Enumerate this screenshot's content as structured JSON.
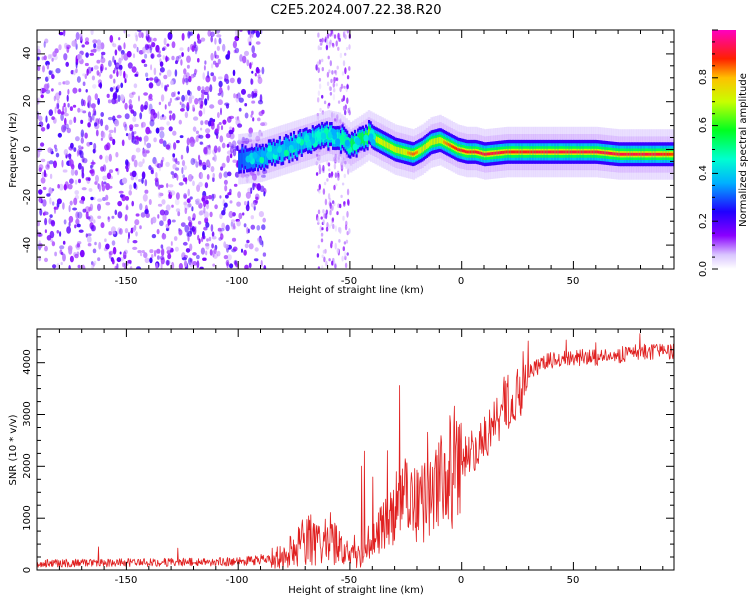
{
  "title": "C2E5.2024.007.22.38.R20",
  "colors": {
    "signal": "#ff2a2a",
    "snr_line": "#e02020",
    "noise": "#7a00ff"
  },
  "chart_data": [
    {
      "type": "heatmap",
      "xlabel": "Height of straight line (km)",
      "ylabel": "Frequency (Hz)",
      "xlim": [
        -190,
        95
      ],
      "ylim": [
        -50,
        50
      ],
      "x_ticks": [
        "-150",
        "-100",
        "-50",
        "0",
        "50"
      ],
      "y_ticks": [
        "-40",
        "-20",
        "0",
        "20",
        "40"
      ],
      "colorbar": {
        "label": "Normalized spectral amplitude",
        "range": [
          0,
          1
        ],
        "ticks": [
          "0.0",
          "0.2",
          "0.4",
          "0.6",
          "0.8"
        ],
        "colormap": "rainbow"
      },
      "ridge": {
        "x": [
          -100,
          -90,
          -80,
          -70,
          -60,
          -55,
          -50,
          -45,
          -42,
          -38,
          -34,
          -30,
          -26,
          -22,
          -18,
          -14,
          -10,
          -6,
          -2,
          2,
          6,
          10,
          20,
          30,
          40,
          50,
          60,
          70,
          80,
          90,
          95
        ],
        "y": [
          -4,
          -3,
          0,
          3,
          6,
          5,
          1,
          4,
          6,
          4,
          2,
          0,
          -1,
          -2,
          0,
          3,
          4,
          2,
          0,
          -1,
          -1,
          -2,
          -1,
          -1,
          -1,
          -1,
          -1,
          -2,
          -2,
          -2,
          -2
        ],
        "peak_amplitude": [
          0.3,
          0.35,
          0.4,
          0.45,
          0.45,
          0.45,
          0.55,
          0.6,
          0.65,
          0.7,
          0.75,
          0.8,
          0.8,
          0.85,
          0.8,
          0.75,
          0.8,
          0.85,
          0.9,
          0.9,
          0.9,
          0.95,
          0.9,
          0.9,
          0.95,
          0.95,
          0.95,
          0.95,
          0.95,
          0.9,
          0.85
        ]
      }
    },
    {
      "type": "line",
      "xlabel": "Height of straight line (km)",
      "ylabel": "SNR (10 * v/v)",
      "xlim": [
        -190,
        95
      ],
      "ylim": [
        0,
        4650
      ],
      "x_ticks": [
        "-150",
        "-100",
        "-50",
        "0",
        "50"
      ],
      "y_ticks": [
        "0",
        "1000",
        "2000",
        "3000",
        "4000"
      ],
      "series": [
        {
          "x": [
            -190,
            -150,
            -100,
            -80,
            -70,
            -60,
            -55,
            -50,
            -45,
            -40,
            -35,
            -30,
            -25,
            -20,
            -15,
            -10,
            -5,
            0,
            5,
            10,
            15,
            20,
            25,
            30,
            35,
            40,
            50,
            60,
            70,
            80,
            90,
            95
          ],
          "y": [
            130,
            140,
            160,
            250,
            550,
            700,
            450,
            250,
            250,
            500,
            900,
            1000,
            1400,
            1300,
            1300,
            1600,
            1900,
            2150,
            2300,
            2500,
            2900,
            3250,
            3550,
            3800,
            3950,
            4050,
            4100,
            4100,
            4150,
            4200,
            4200,
            4200
          ]
        }
      ]
    }
  ]
}
